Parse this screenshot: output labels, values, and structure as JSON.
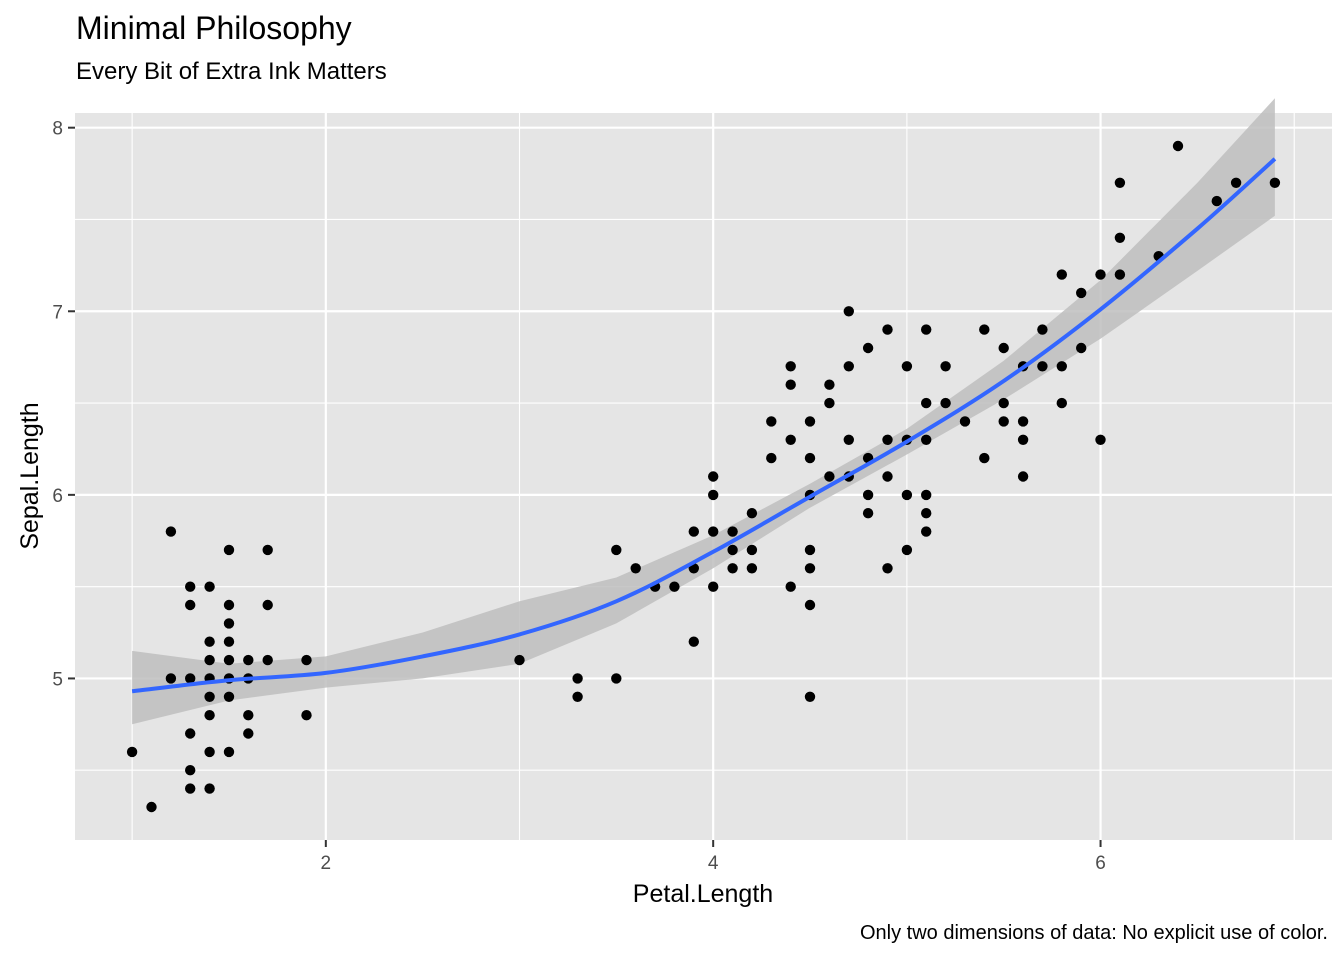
{
  "title": "Minimal Philosophy",
  "subtitle": "Every Bit of Extra Ink Matters",
  "caption": "Only two dimensions of data: No explicit use of color.",
  "chart_data": {
    "type": "scatter",
    "xlabel": "Petal.Length",
    "ylabel": "Sepal.Length",
    "xlim": [
      0.705,
      7.195
    ],
    "ylim": [
      4.12,
      8.08
    ],
    "x_ticks": [
      2,
      4,
      6
    ],
    "y_ticks": [
      5,
      6,
      7,
      8
    ],
    "x_tick_labels": [
      "2",
      "4",
      "6"
    ],
    "y_tick_labels": [
      "5",
      "6",
      "7",
      "8"
    ],
    "grid": true,
    "panel_background": "#e5e5e5",
    "point_color": "#000000",
    "smooth_color": "#3366ff",
    "ribbon_color": "#bebebe",
    "points": [
      [
        1.0,
        4.6
      ],
      [
        1.1,
        4.3
      ],
      [
        1.2,
        5.8
      ],
      [
        1.2,
        5.0
      ],
      [
        1.3,
        5.5
      ],
      [
        1.3,
        5.4
      ],
      [
        1.3,
        5.0
      ],
      [
        1.3,
        4.7
      ],
      [
        1.3,
        4.5
      ],
      [
        1.3,
        4.4
      ],
      [
        1.4,
        5.5
      ],
      [
        1.4,
        5.2
      ],
      [
        1.4,
        5.1
      ],
      [
        1.4,
        5.0
      ],
      [
        1.4,
        4.9
      ],
      [
        1.4,
        4.8
      ],
      [
        1.4,
        4.6
      ],
      [
        1.4,
        4.4
      ],
      [
        1.5,
        5.7
      ],
      [
        1.5,
        5.4
      ],
      [
        1.5,
        5.3
      ],
      [
        1.5,
        5.2
      ],
      [
        1.5,
        5.1
      ],
      [
        1.5,
        5.0
      ],
      [
        1.5,
        4.9
      ],
      [
        1.5,
        4.6
      ],
      [
        1.6,
        5.1
      ],
      [
        1.6,
        5.0
      ],
      [
        1.6,
        4.8
      ],
      [
        1.6,
        4.7
      ],
      [
        1.7,
        5.7
      ],
      [
        1.7,
        5.4
      ],
      [
        1.7,
        5.1
      ],
      [
        1.9,
        5.1
      ],
      [
        1.9,
        4.8
      ],
      [
        3.0,
        5.1
      ],
      [
        3.3,
        5.0
      ],
      [
        3.3,
        4.9
      ],
      [
        3.5,
        5.7
      ],
      [
        3.5,
        5.0
      ],
      [
        3.6,
        5.6
      ],
      [
        3.7,
        5.5
      ],
      [
        3.8,
        5.5
      ],
      [
        3.9,
        5.8
      ],
      [
        3.9,
        5.6
      ],
      [
        3.9,
        5.2
      ],
      [
        4.0,
        6.1
      ],
      [
        4.0,
        6.0
      ],
      [
        4.0,
        5.8
      ],
      [
        4.0,
        5.5
      ],
      [
        4.1,
        5.8
      ],
      [
        4.1,
        5.7
      ],
      [
        4.1,
        5.6
      ],
      [
        4.2,
        5.9
      ],
      [
        4.2,
        5.7
      ],
      [
        4.2,
        5.6
      ],
      [
        4.3,
        6.4
      ],
      [
        4.3,
        6.2
      ],
      [
        4.4,
        6.7
      ],
      [
        4.4,
        6.6
      ],
      [
        4.4,
        6.3
      ],
      [
        4.4,
        5.5
      ],
      [
        4.5,
        6.4
      ],
      [
        4.5,
        6.2
      ],
      [
        4.5,
        6.0
      ],
      [
        4.5,
        5.7
      ],
      [
        4.5,
        5.6
      ],
      [
        4.5,
        5.4
      ],
      [
        4.5,
        4.9
      ],
      [
        4.6,
        6.6
      ],
      [
        4.6,
        6.5
      ],
      [
        4.6,
        6.1
      ],
      [
        4.7,
        7.0
      ],
      [
        4.7,
        6.7
      ],
      [
        4.7,
        6.3
      ],
      [
        4.7,
        6.1
      ],
      [
        4.8,
        6.8
      ],
      [
        4.8,
        6.2
      ],
      [
        4.8,
        6.0
      ],
      [
        4.8,
        5.9
      ],
      [
        4.9,
        6.9
      ],
      [
        4.9,
        6.3
      ],
      [
        4.9,
        6.1
      ],
      [
        4.9,
        5.6
      ],
      [
        5.0,
        6.7
      ],
      [
        5.0,
        6.3
      ],
      [
        5.0,
        6.0
      ],
      [
        5.0,
        5.7
      ],
      [
        5.1,
        6.9
      ],
      [
        5.1,
        6.5
      ],
      [
        5.1,
        6.3
      ],
      [
        5.1,
        6.0
      ],
      [
        5.1,
        5.9
      ],
      [
        5.1,
        5.8
      ],
      [
        5.2,
        6.7
      ],
      [
        5.2,
        6.5
      ],
      [
        5.3,
        6.4
      ],
      [
        5.4,
        6.9
      ],
      [
        5.4,
        6.2
      ],
      [
        5.5,
        6.8
      ],
      [
        5.5,
        6.5
      ],
      [
        5.5,
        6.4
      ],
      [
        5.6,
        6.7
      ],
      [
        5.6,
        6.4
      ],
      [
        5.6,
        6.3
      ],
      [
        5.6,
        6.1
      ],
      [
        5.7,
        6.9
      ],
      [
        5.7,
        6.7
      ],
      [
        5.8,
        7.2
      ],
      [
        5.8,
        6.7
      ],
      [
        5.8,
        6.5
      ],
      [
        5.9,
        7.1
      ],
      [
        5.9,
        6.8
      ],
      [
        6.0,
        7.2
      ],
      [
        6.0,
        6.3
      ],
      [
        6.1,
        7.7
      ],
      [
        6.1,
        7.4
      ],
      [
        6.1,
        7.2
      ],
      [
        6.3,
        7.3
      ],
      [
        6.4,
        7.9
      ],
      [
        6.6,
        7.6
      ],
      [
        6.7,
        7.7
      ],
      [
        6.9,
        7.7
      ]
    ],
    "smooth": [
      {
        "x": 1.0,
        "y": 4.93,
        "lo": 4.75,
        "hi": 5.15
      },
      {
        "x": 1.5,
        "y": 4.99,
        "lo": 4.88,
        "hi": 5.08
      },
      {
        "x": 2.0,
        "y": 5.03,
        "lo": 4.95,
        "hi": 5.12
      },
      {
        "x": 2.5,
        "y": 5.12,
        "lo": 5.0,
        "hi": 5.25
      },
      {
        "x": 3.0,
        "y": 5.24,
        "lo": 5.08,
        "hi": 5.42
      },
      {
        "x": 3.5,
        "y": 5.42,
        "lo": 5.3,
        "hi": 5.55
      },
      {
        "x": 4.0,
        "y": 5.69,
        "lo": 5.6,
        "hi": 5.78
      },
      {
        "x": 4.5,
        "y": 5.99,
        "lo": 5.93,
        "hi": 6.06
      },
      {
        "x": 5.0,
        "y": 6.29,
        "lo": 6.22,
        "hi": 6.36
      },
      {
        "x": 5.5,
        "y": 6.62,
        "lo": 6.52,
        "hi": 6.73
      },
      {
        "x": 6.0,
        "y": 7.01,
        "lo": 6.85,
        "hi": 7.17
      },
      {
        "x": 6.5,
        "y": 7.45,
        "lo": 7.22,
        "hi": 7.7
      },
      {
        "x": 6.9,
        "y": 7.83,
        "lo": 7.52,
        "hi": 8.16
      }
    ]
  }
}
